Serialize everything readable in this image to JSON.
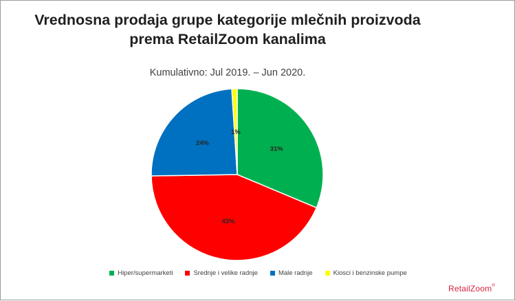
{
  "chart_data": {
    "type": "pie",
    "title_lines": [
      "Vrednosna prodaja grupe kategorije mlečnih proizvoda",
      "prema RetailZoom kanalima"
    ],
    "subtitle": "Kumulativno: Jul 2019. – Jun 2020.",
    "slices": [
      {
        "name": "Hiper/supermarketi",
        "value": 31,
        "label": "31%",
        "color": "#00b050"
      },
      {
        "name": "Srednje i velike radnje",
        "value": 43,
        "label": "43%",
        "color": "#ff0000"
      },
      {
        "name": "Male radnje",
        "value": 24,
        "label": "24%",
        "color": "#0070c0"
      },
      {
        "name": "Kiosci i benzinske pumpe",
        "value": 1,
        "label": "1%",
        "color": "#ffff00"
      }
    ],
    "start_angle_deg": 0,
    "direction": "clockwise",
    "legend_position": "bottom"
  },
  "brand": {
    "name": "RetailZoom",
    "mark": "®"
  }
}
